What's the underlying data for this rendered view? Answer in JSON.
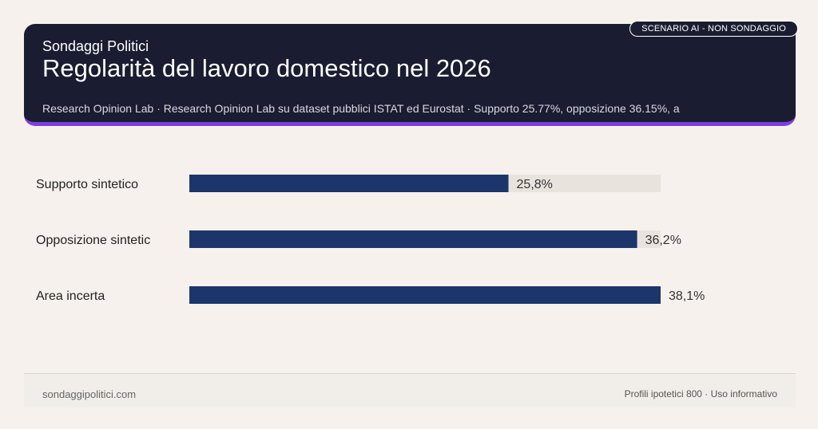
{
  "header": {
    "kicker": "Sondaggi Politici",
    "title": "Regolarità del lavoro domestico nel 2026",
    "subtitle": "Research Opinion Lab · Research Opinion Lab su dataset pubblici ISTAT ed Eurostat · Supporto 25.77%, opposizione 36.15%, a",
    "badge": "SCENARIO AI - NON SONDAGGIO"
  },
  "chart_data": {
    "type": "bar",
    "orientation": "horizontal",
    "categories": [
      "Supporto sintetico",
      "Opposizione sintetic",
      "Area incerta"
    ],
    "values": [
      25.8,
      36.2,
      38.1
    ],
    "value_labels": [
      "25,8%",
      "36,2%",
      "38,1%"
    ],
    "xlim": [
      0,
      38.1
    ],
    "grid": false,
    "colors": {
      "bar": "#1c366b",
      "track": "#e8e3dd",
      "label": "#333333"
    }
  },
  "footer": {
    "site": "sondaggipolitici.com",
    "note": "Profili ipotetici 800 · Uso informativo"
  }
}
